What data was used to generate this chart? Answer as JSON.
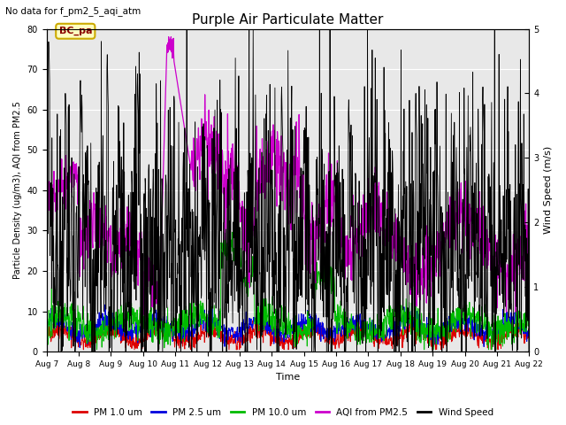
{
  "title": "Purple Air Particulate Matter",
  "subtitle": "No data for f_pm2_5_aqi_atm",
  "xlabel": "Time",
  "ylabel_left": "Particle Density (ug/m3), AQI from PM2.5",
  "ylabel_right": "Wind Speed (m/s)",
  "ylim_left": [
    0,
    80
  ],
  "ylim_right": [
    0.0,
    5.0
  ],
  "x_tick_labels": [
    "Aug 7",
    "Aug 8",
    "Aug 9",
    "Aug 10",
    "Aug 11",
    "Aug 12",
    "Aug 13",
    "Aug 14",
    "Aug 15",
    "Aug 16",
    "Aug 17",
    "Aug 18",
    "Aug 19",
    "Aug 20",
    "Aug 21",
    "Aug 22"
  ],
  "legend_labels": [
    "PM 1.0 um",
    "PM 2.5 um",
    "PM 10.0 um",
    "AQI from PM2.5",
    "Wind Speed"
  ],
  "legend_colors": [
    "#dd0000",
    "#0000dd",
    "#00bb00",
    "#cc00cc",
    "#000000"
  ],
  "bc_pa_label": "BC_pa",
  "plot_bg_color": "#e8e8e8",
  "grid_color": "#ffffff",
  "seed": 42
}
